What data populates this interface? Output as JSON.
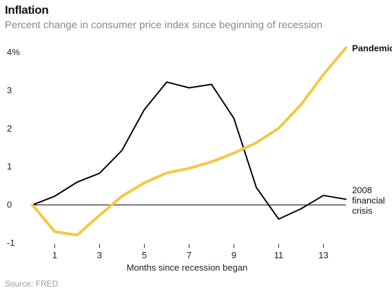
{
  "header": {
    "title": "Inflation",
    "subtitle": "Percent change in consumer price index since beginning of recession"
  },
  "footer": {
    "source": "Source: FRED"
  },
  "colors": {
    "pandemic": "#f5c842",
    "financial_crisis": "#000000",
    "zero_line": "#000000"
  },
  "chart_data": {
    "type": "line",
    "title": "Inflation",
    "subtitle": "Percent change in consumer price index since beginning of recession",
    "xlabel": "Months since recession began",
    "ylabel": "",
    "xlim": [
      0,
      14
    ],
    "ylim": [
      -1,
      4
    ],
    "x_ticks": [
      1,
      3,
      5,
      7,
      9,
      11,
      13
    ],
    "x_tick_labels": [
      "1",
      "3",
      "5",
      "7",
      "9",
      "11",
      "13"
    ],
    "y_ticks": [
      -1,
      0,
      1,
      2,
      3,
      4
    ],
    "y_tick_labels": [
      "-1",
      "0",
      "1",
      "2",
      "3",
      "4%"
    ],
    "grid": false,
    "x": [
      0,
      1,
      2,
      3,
      4,
      5,
      6,
      7,
      8,
      9,
      10,
      11,
      12,
      13,
      14
    ],
    "series": [
      {
        "name": "2008 financial crisis",
        "label_lines": [
          "2008",
          "financial",
          "crisis"
        ],
        "color": "#000000",
        "values": [
          0,
          0.23,
          0.6,
          0.83,
          1.43,
          2.5,
          3.22,
          3.07,
          3.16,
          2.27,
          0.46,
          -0.37,
          -0.1,
          0.25,
          0.15
        ]
      },
      {
        "name": "Pandemic",
        "label_lines": [
          "Pandemic"
        ],
        "color": "#f5c842",
        "values": [
          0,
          -0.7,
          -0.79,
          -0.27,
          0.23,
          0.58,
          0.84,
          0.96,
          1.13,
          1.36,
          1.63,
          2.01,
          2.63,
          3.42,
          4.12
        ]
      }
    ]
  }
}
